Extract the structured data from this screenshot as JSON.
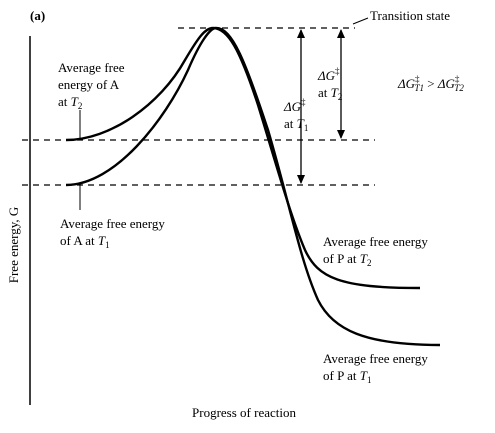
{
  "panel_label": "(a)",
  "labels": {
    "transition_state": "Transition state",
    "a_t2_line1": "Average free",
    "a_t2_line2": "energy of A",
    "a_t2_line3_prefix": "at ",
    "a_t2_var": "T",
    "a_t2_sub": "2",
    "a_t1_line1": "Average free energy",
    "a_t1_line2_prefix": "of A at ",
    "a_t1_var": "T",
    "a_t1_sub": "1",
    "p_t2_line1": "Average free energy",
    "p_t2_line2_prefix": "of P at ",
    "p_t2_var": "T",
    "p_t2_sub": "2",
    "p_t1_line1": "Average free energy",
    "p_t1_line2_prefix": "of P at ",
    "p_t1_var": "T",
    "p_t1_sub": "1",
    "dg_symbol": "ΔG",
    "dg_dagger": "‡",
    "dg_t2_prefix": "at ",
    "dg_t2_var": "T",
    "dg_t2_sub": "2",
    "dg_t1_prefix": "at ",
    "dg_t1_var": "T",
    "dg_t1_sub": "1",
    "comparison_lhs": "ΔG",
    "comparison_lhs_dagger": "‡",
    "comparison_lhs_sub": "T1",
    "comparison_op": " > ",
    "comparison_rhs": "ΔG",
    "comparison_rhs_dagger": "‡",
    "comparison_rhs_sub": "T2"
  },
  "axes": {
    "y_label": "Free energy, G",
    "x_label": "Progress of reaction"
  }
}
